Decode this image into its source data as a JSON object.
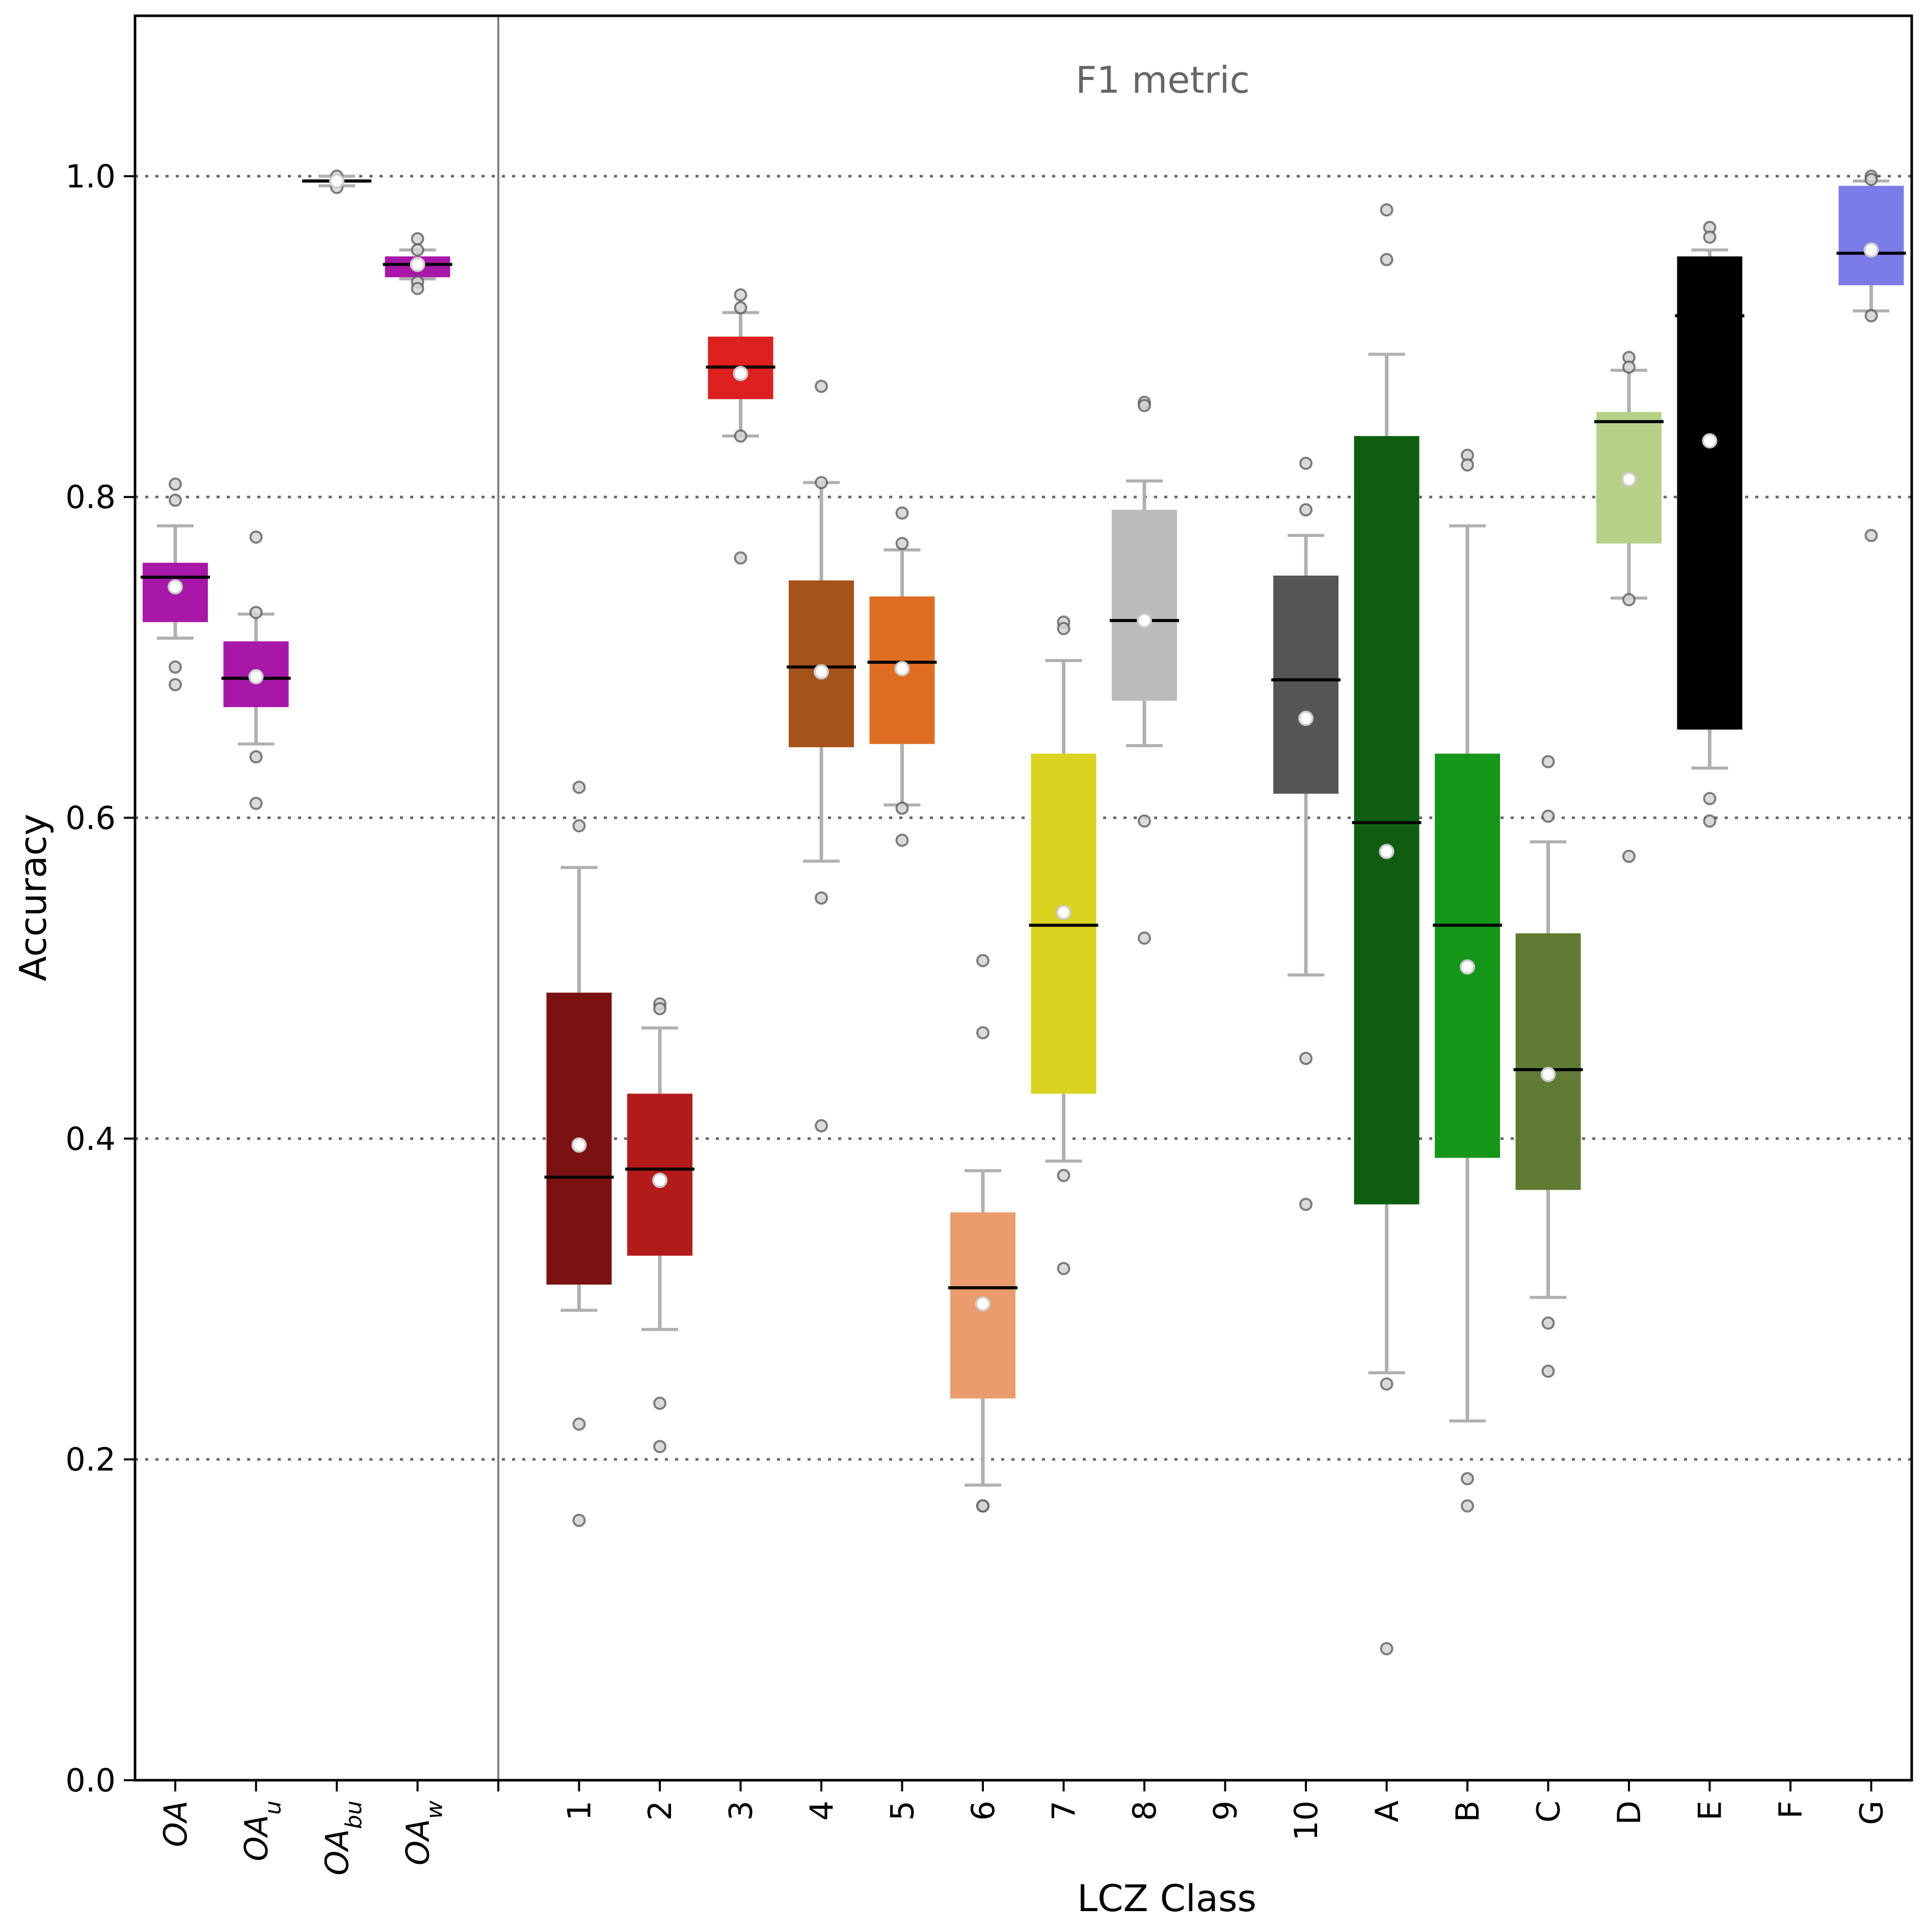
{
  "chart_data": {
    "type": "boxplot",
    "title": "F1 metric",
    "xlabel": "LCZ Class",
    "ylabel": "Accuracy",
    "ylim": [
      0.0,
      1.1
    ],
    "yticks": [
      0.0,
      0.2,
      0.4,
      0.6,
      0.8,
      1.0
    ],
    "ytick_labels": [
      "0.0",
      "0.2",
      "0.4",
      "0.6",
      "0.8",
      "1.0"
    ],
    "grid": "horizontal dotted at y ticks",
    "colors": {
      "whisker": "#b0b0b0",
      "median": "#000000",
      "mean_fill": "#ffffff",
      "outlier_fill": "#d3d3d3",
      "outlier_edge": "#555555",
      "gridline": "#666666",
      "divider": "#808080"
    },
    "overall_groups": [
      {
        "label": "OA",
        "base": "OA",
        "sub": "",
        "color": "#a817a8",
        "whislo": 0.712,
        "q1": 0.722,
        "median": 0.75,
        "q3": 0.759,
        "whishi": 0.782,
        "mean": 0.744,
        "fliers": [
          0.808,
          0.798,
          0.694,
          0.683
        ]
      },
      {
        "label": "OA_u",
        "base": "OA",
        "sub": "u",
        "color": "#a817a8",
        "whislo": 0.646,
        "q1": 0.669,
        "median": 0.687,
        "q3": 0.71,
        "whishi": 0.727,
        "mean": 0.688,
        "fliers": [
          0.775,
          0.728,
          0.638,
          0.609
        ]
      },
      {
        "label": "OA_bu",
        "base": "OA",
        "sub": "bu",
        "color": "#a817a8",
        "whislo": 0.994,
        "q1": 0.996,
        "median": 0.997,
        "q3": 0.998,
        "whishi": 1.0,
        "mean": 0.997,
        "fliers": [
          1.0,
          0.993
        ]
      },
      {
        "label": "OA_w",
        "base": "OA",
        "sub": "w",
        "color": "#a817a8",
        "whislo": 0.936,
        "q1": 0.937,
        "median": 0.945,
        "q3": 0.95,
        "whishi": 0.954,
        "mean": 0.945,
        "fliers": [
          0.961,
          0.954,
          0.934,
          0.93
        ]
      }
    ],
    "categories": [
      "1",
      "2",
      "3",
      "4",
      "5",
      "6",
      "7",
      "8",
      "9",
      "10",
      "A",
      "B",
      "C",
      "D",
      "E",
      "F",
      "G"
    ],
    "class_groups": [
      {
        "label": "1",
        "color": "#7b1113",
        "whislo": 0.293,
        "q1": 0.309,
        "median": 0.376,
        "q3": 0.491,
        "whishi": 0.569,
        "mean": 0.396,
        "fliers": [
          0.619,
          0.595,
          0.222,
          0.162
        ]
      },
      {
        "label": "2",
        "color": "#b31b1b",
        "whislo": 0.281,
        "q1": 0.327,
        "median": 0.381,
        "q3": 0.428,
        "whishi": 0.469,
        "mean": 0.374,
        "fliers": [
          0.484,
          0.481,
          0.235,
          0.208
        ]
      },
      {
        "label": "3",
        "color": "#de2020",
        "whislo": 0.838,
        "q1": 0.861,
        "median": 0.881,
        "q3": 0.9,
        "whishi": 0.915,
        "mean": 0.877,
        "fliers": [
          0.926,
          0.918,
          0.838,
          0.762
        ]
      },
      {
        "label": "4",
        "color": "#a6531b",
        "whislo": 0.573,
        "q1": 0.644,
        "median": 0.694,
        "q3": 0.748,
        "whishi": 0.809,
        "mean": 0.691,
        "fliers": [
          0.869,
          0.809,
          0.55,
          0.408
        ]
      },
      {
        "label": "5",
        "color": "#e06e22",
        "whislo": 0.608,
        "q1": 0.646,
        "median": 0.697,
        "q3": 0.738,
        "whishi": 0.767,
        "mean": 0.693,
        "fliers": [
          0.79,
          0.771,
          0.606,
          0.586
        ]
      },
      {
        "label": "6",
        "color": "#ea9c6c",
        "whislo": 0.184,
        "q1": 0.238,
        "median": 0.307,
        "q3": 0.354,
        "whishi": 0.38,
        "mean": 0.297,
        "fliers": [
          0.511,
          0.466,
          0.171,
          0.171
        ]
      },
      {
        "label": "7",
        "color": "#dad31f",
        "whislo": 0.386,
        "q1": 0.428,
        "median": 0.533,
        "q3": 0.64,
        "whishi": 0.698,
        "mean": 0.541,
        "fliers": [
          0.722,
          0.718,
          0.377,
          0.319
        ]
      },
      {
        "label": "8",
        "color": "#bbbbbb",
        "whislo": 0.645,
        "q1": 0.673,
        "median": 0.723,
        "q3": 0.792,
        "whishi": 0.81,
        "mean": 0.723,
        "fliers": [
          0.859,
          0.857,
          0.598,
          0.525
        ]
      },
      {
        "label": "9",
        "color": null,
        "empty": true
      },
      {
        "label": "10",
        "color": "#555555",
        "whislo": 0.502,
        "q1": 0.615,
        "median": 0.686,
        "q3": 0.751,
        "whishi": 0.776,
        "mean": 0.662,
        "fliers": [
          0.821,
          0.792,
          0.45,
          0.359
        ]
      },
      {
        "label": "A",
        "color": "#0f5e0f",
        "whislo": 0.254,
        "q1": 0.359,
        "median": 0.597,
        "q3": 0.838,
        "whishi": 0.889,
        "mean": 0.579,
        "fliers": [
          0.979,
          0.948,
          0.247,
          0.082
        ]
      },
      {
        "label": "B",
        "color": "#149619",
        "whislo": 0.224,
        "q1": 0.388,
        "median": 0.533,
        "q3": 0.64,
        "whishi": 0.782,
        "mean": 0.507,
        "fliers": [
          0.826,
          0.82,
          0.188,
          0.171
        ]
      },
      {
        "label": "C",
        "color": "#607b33",
        "whislo": 0.301,
        "q1": 0.368,
        "median": 0.443,
        "q3": 0.528,
        "whishi": 0.585,
        "mean": 0.44,
        "fliers": [
          0.635,
          0.601,
          0.285,
          0.255
        ]
      },
      {
        "label": "D",
        "color": "#b5d188",
        "whislo": 0.737,
        "q1": 0.771,
        "median": 0.847,
        "q3": 0.853,
        "whishi": 0.879,
        "mean": 0.811,
        "fliers": [
          0.887,
          0.881,
          0.736,
          0.576
        ]
      },
      {
        "label": "E",
        "color": "#000000",
        "whislo": 0.631,
        "q1": 0.655,
        "median": 0.913,
        "q3": 0.95,
        "whishi": 0.954,
        "mean": 0.835,
        "fliers": [
          0.968,
          0.962,
          0.612,
          0.598
        ]
      },
      {
        "label": "F",
        "color": null,
        "empty": true
      },
      {
        "label": "G",
        "color": "#7c7ce8",
        "whislo": 0.916,
        "q1": 0.932,
        "median": 0.952,
        "q3": 0.994,
        "whishi": 0.997,
        "mean": 0.954,
        "fliers": [
          1.0,
          0.998,
          0.913,
          0.776
        ]
      }
    ]
  }
}
